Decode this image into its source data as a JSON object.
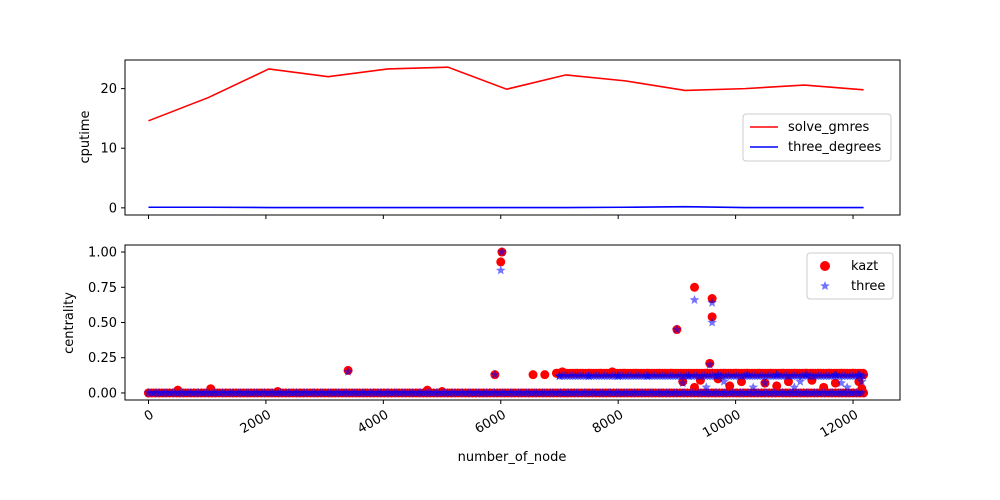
{
  "chart_data": [
    {
      "type": "line",
      "xlabel": "",
      "ylabel": "cputime",
      "xlim": [
        -400,
        12800
      ],
      "ylim": [
        -1.2,
        24.8
      ],
      "yticks": [
        0,
        10,
        20
      ],
      "grid": false,
      "legend_placement": "center-right",
      "series": [
        {
          "name": "solve_gmres",
          "color": "#ff0000",
          "x": [
            0,
            1020,
            2050,
            3060,
            4080,
            5100,
            6100,
            7110,
            8120,
            9140,
            10160,
            11170,
            12180
          ],
          "y": [
            14.6,
            18.5,
            23.3,
            22.0,
            23.3,
            23.6,
            19.9,
            22.3,
            21.3,
            19.7,
            20.0,
            20.6,
            19.8
          ]
        },
        {
          "name": "three_degrees",
          "color": "#0000ff",
          "x": [
            0,
            1020,
            2050,
            3060,
            4080,
            5100,
            6100,
            7110,
            8120,
            9140,
            10160,
            11170,
            12180
          ],
          "y": [
            0.1,
            0.1,
            0.05,
            0.05,
            0.05,
            0.05,
            0.05,
            0.05,
            0.1,
            0.2,
            0.05,
            0.05,
            0.05
          ]
        }
      ]
    },
    {
      "type": "scatter",
      "xlabel": "number_of_node",
      "ylabel": "centrality",
      "xlim": [
        -400,
        12800
      ],
      "ylim": [
        -0.05,
        1.05
      ],
      "xticks": [
        0,
        2000,
        4000,
        6000,
        8000,
        10000,
        12000
      ],
      "yticks": [
        "0.00",
        "0.25",
        "0.50",
        "0.75",
        "1.00"
      ],
      "grid": false,
      "legend_placement": "top-right",
      "series": [
        {
          "name": "kazt",
          "color": "#ff0000",
          "marker": "circle",
          "points": [
            [
              0,
              0.0
            ],
            [
              500,
              0.02
            ],
            [
              1060,
              0.03
            ],
            [
              2200,
              0.01
            ],
            [
              3400,
              0.16
            ],
            [
              4750,
              0.02
            ],
            [
              5000,
              0.01
            ],
            [
              5900,
              0.13
            ],
            [
              6000,
              0.93
            ],
            [
              6020,
              1.0
            ],
            [
              6550,
              0.13
            ],
            [
              6750,
              0.13
            ],
            [
              6950,
              0.14
            ],
            [
              7050,
              0.15
            ],
            [
              7300,
              0.14
            ],
            [
              7500,
              0.14
            ],
            [
              7700,
              0.14
            ],
            [
              7900,
              0.15
            ],
            [
              8100,
              0.14
            ],
            [
              8300,
              0.14
            ],
            [
              8500,
              0.14
            ],
            [
              8700,
              0.14
            ],
            [
              8900,
              0.14
            ],
            [
              9000,
              0.45
            ],
            [
              9300,
              0.75
            ],
            [
              9500,
              0.14
            ],
            [
              9560,
              0.21
            ],
            [
              9600,
              0.67
            ],
            [
              9600,
              0.54
            ],
            [
              9800,
              0.14
            ],
            [
              10000,
              0.14
            ],
            [
              10200,
              0.14
            ],
            [
              10400,
              0.14
            ],
            [
              10600,
              0.14
            ],
            [
              10800,
              0.14
            ],
            [
              11000,
              0.14
            ],
            [
              11200,
              0.14
            ],
            [
              11400,
              0.14
            ],
            [
              11600,
              0.14
            ],
            [
              11800,
              0.14
            ],
            [
              12000,
              0.14
            ],
            [
              12180,
              0.13
            ],
            [
              9100,
              0.08
            ],
            [
              9400,
              0.09
            ],
            [
              9700,
              0.1
            ],
            [
              10100,
              0.08
            ],
            [
              10500,
              0.07
            ],
            [
              10900,
              0.08
            ],
            [
              11300,
              0.09
            ],
            [
              11700,
              0.07
            ],
            [
              12100,
              0.08
            ],
            [
              9300,
              0.04
            ],
            [
              9900,
              0.05
            ],
            [
              10700,
              0.05
            ],
            [
              11500,
              0.04
            ],
            [
              12150,
              0.03
            ]
          ]
        },
        {
          "name": "three",
          "color": "#0000ff",
          "marker": "star",
          "points": [
            [
              3400,
              0.15
            ],
            [
              5900,
              0.13
            ],
            [
              6000,
              0.87
            ],
            [
              6020,
              1.0
            ],
            [
              9000,
              0.45
            ],
            [
              9300,
              0.66
            ],
            [
              9560,
              0.2
            ],
            [
              9600,
              0.64
            ],
            [
              9600,
              0.5
            ],
            [
              7000,
              0.12
            ],
            [
              7500,
              0.12
            ],
            [
              8000,
              0.12
            ],
            [
              8500,
              0.12
            ],
            [
              9200,
              0.12
            ],
            [
              9700,
              0.13
            ],
            [
              10200,
              0.13
            ],
            [
              10700,
              0.13
            ],
            [
              11200,
              0.13
            ],
            [
              11700,
              0.13
            ],
            [
              12100,
              0.13
            ],
            [
              9100,
              0.07
            ],
            [
              9800,
              0.08
            ],
            [
              10500,
              0.07
            ],
            [
              11100,
              0.08
            ],
            [
              11800,
              0.07
            ],
            [
              12150,
              0.08
            ],
            [
              9500,
              0.04
            ],
            [
              10300,
              0.04
            ],
            [
              11000,
              0.04
            ],
            [
              11900,
              0.04
            ]
          ]
        }
      ]
    }
  ]
}
